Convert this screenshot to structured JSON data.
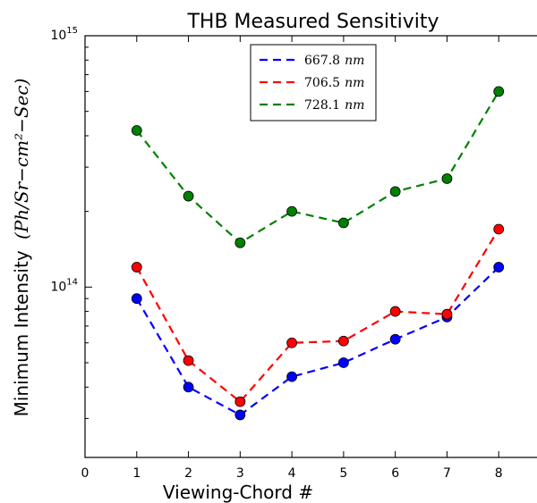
{
  "chart_data": {
    "type": "line",
    "title": "THB Measured Sensitivity",
    "xlabel": "Viewing-Chord #",
    "ylabel_plain": "Minimum Intensity",
    "ylabel_math": "(Ph/Sr−cm²−Sec)",
    "xlim": [
      0,
      9
    ],
    "ylim": [
      21000000000000.0,
      1000000000000000.0
    ],
    "yscale": "log",
    "x_ticks": [
      0,
      1,
      2,
      3,
      4,
      5,
      6,
      7,
      8
    ],
    "y_tick_labels": [
      {
        "value": 100000000000000.0,
        "base": "10",
        "exp": "14"
      },
      {
        "value": 1000000000000000.0,
        "base": "10",
        "exp": "15"
      }
    ],
    "grid": false,
    "legend_position": "top-center",
    "x": [
      1,
      2,
      3,
      4,
      5,
      6,
      7,
      8
    ],
    "series": [
      {
        "name_value": "667.8",
        "name_unit": "nm",
        "color": "#0000ff",
        "values": [
          90000000000000.0,
          40000000000000.0,
          31000000000000.0,
          44000000000000.0,
          50000000000000.0,
          62000000000000.0,
          76000000000000.0,
          120000000000000.0
        ]
      },
      {
        "name_value": "706.5",
        "name_unit": "nm",
        "color": "#ff0000",
        "values": [
          120000000000000.0,
          51000000000000.0,
          35000000000000.0,
          60000000000000.0,
          61000000000000.0,
          80000000000000.0,
          78000000000000.0,
          170000000000000.0
        ]
      },
      {
        "name_value": "728.1",
        "name_unit": "nm",
        "color": "#008000",
        "values": [
          420000000000000.0,
          230000000000000.0,
          150000000000000.0,
          200000000000000.0,
          180000000000000.0,
          240000000000000.0,
          270000000000000.0,
          600000000000000.0
        ]
      }
    ]
  }
}
